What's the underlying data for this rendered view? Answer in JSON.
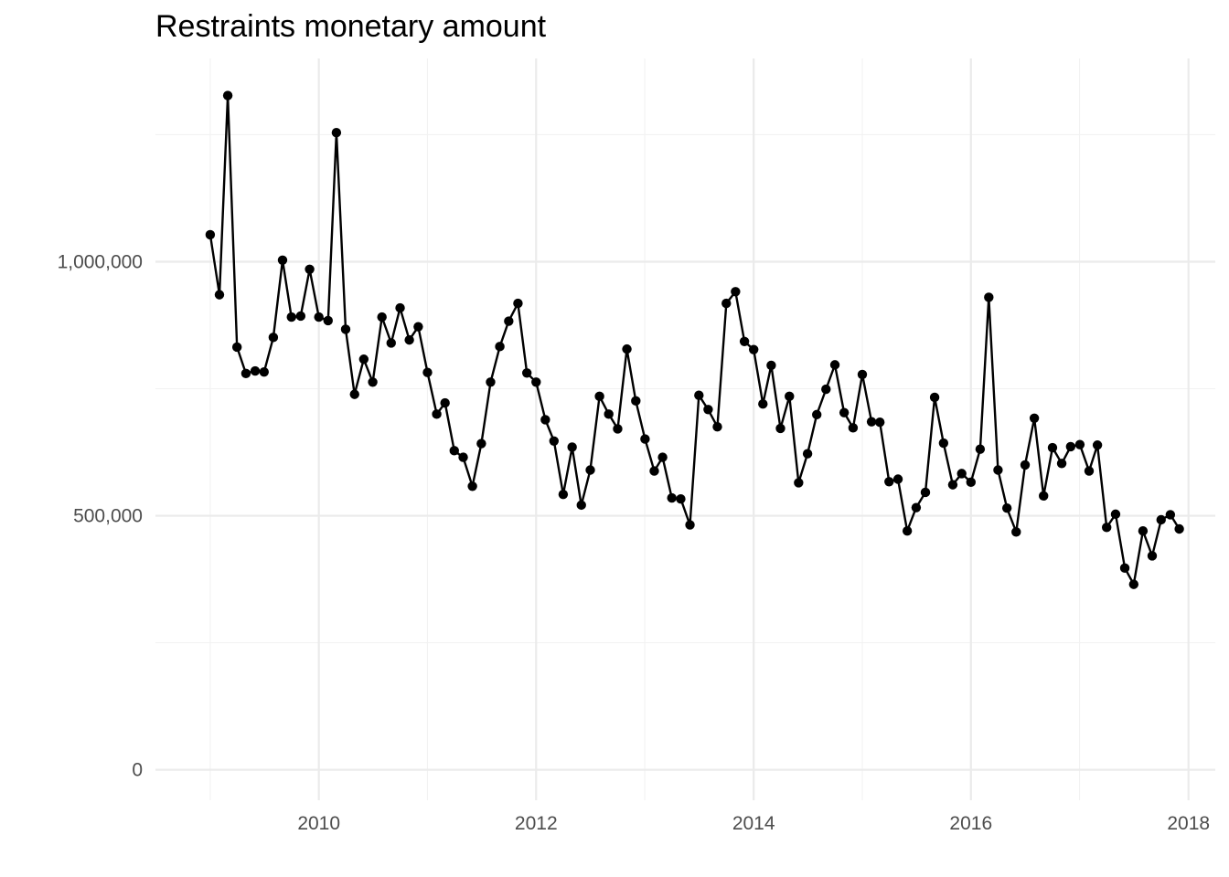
{
  "chart_data": {
    "type": "line",
    "title": "Restraints monetary amount",
    "xlabel": "",
    "ylabel": "",
    "x_type": "date",
    "x_ticks": [
      "2010",
      "2012",
      "2014",
      "2016",
      "2018"
    ],
    "x_tick_values": [
      "2010-01-01",
      "2012-01-01",
      "2014-01-01",
      "2016-01-01",
      "2018-01-01"
    ],
    "y_ticks": [
      "0",
      "500,000",
      "1,000,000"
    ],
    "y_tick_values": [
      0,
      500000,
      1000000
    ],
    "xlim": [
      "2008-07-01",
      "2018-04-01"
    ],
    "ylim": [
      -60000,
      1400000
    ],
    "grid": true,
    "legend": "none",
    "line_color": "#000000",
    "series": [
      {
        "points": [
          [
            "2009-01-01",
            1053000
          ],
          [
            "2009-02-01",
            935000
          ],
          [
            "2009-03-01",
            1327000
          ],
          [
            "2009-04-01",
            832000
          ],
          [
            "2009-05-01",
            780000
          ],
          [
            "2009-06-01",
            785000
          ],
          [
            "2009-07-01",
            783000
          ],
          [
            "2009-08-01",
            851000
          ],
          [
            "2009-09-01",
            1003000
          ],
          [
            "2009-10-01",
            891000
          ],
          [
            "2009-11-01",
            893000
          ],
          [
            "2009-12-01",
            985000
          ],
          [
            "2010-01-01",
            891000
          ],
          [
            "2010-02-01",
            884000
          ],
          [
            "2010-03-01",
            1254000
          ],
          [
            "2010-04-01",
            867000
          ],
          [
            "2010-05-01",
            739000
          ],
          [
            "2010-06-01",
            808000
          ],
          [
            "2010-07-01",
            763000
          ],
          [
            "2010-08-01",
            891000
          ],
          [
            "2010-09-01",
            840000
          ],
          [
            "2010-10-01",
            909000
          ],
          [
            "2010-11-01",
            846000
          ],
          [
            "2010-12-01",
            872000
          ],
          [
            "2011-01-01",
            782000
          ],
          [
            "2011-02-01",
            700000
          ],
          [
            "2011-03-01",
            722000
          ],
          [
            "2011-04-01",
            628000
          ],
          [
            "2011-05-01",
            615000
          ],
          [
            "2011-06-01",
            558000
          ],
          [
            "2011-07-01",
            642000
          ],
          [
            "2011-08-01",
            763000
          ],
          [
            "2011-09-01",
            833000
          ],
          [
            "2011-10-01",
            883000
          ],
          [
            "2011-11-01",
            918000
          ],
          [
            "2011-12-01",
            781000
          ],
          [
            "2012-01-01",
            763000
          ],
          [
            "2012-02-01",
            689000
          ],
          [
            "2012-03-01",
            647000
          ],
          [
            "2012-04-01",
            542000
          ],
          [
            "2012-05-01",
            635000
          ],
          [
            "2012-06-01",
            521000
          ],
          [
            "2012-07-01",
            590000
          ],
          [
            "2012-08-01",
            735000
          ],
          [
            "2012-09-01",
            700000
          ],
          [
            "2012-10-01",
            671000
          ],
          [
            "2012-11-01",
            828000
          ],
          [
            "2012-12-01",
            726000
          ],
          [
            "2013-01-01",
            651000
          ],
          [
            "2013-02-01",
            588000
          ],
          [
            "2013-03-01",
            615000
          ],
          [
            "2013-04-01",
            535000
          ],
          [
            "2013-05-01",
            533000
          ],
          [
            "2013-06-01",
            482000
          ],
          [
            "2013-07-01",
            737000
          ],
          [
            "2013-08-01",
            709000
          ],
          [
            "2013-09-01",
            675000
          ],
          [
            "2013-10-01",
            918000
          ],
          [
            "2013-11-01",
            941000
          ],
          [
            "2013-12-01",
            843000
          ],
          [
            "2014-01-01",
            827000
          ],
          [
            "2014-02-01",
            720000
          ],
          [
            "2014-03-01",
            796000
          ],
          [
            "2014-04-01",
            672000
          ],
          [
            "2014-05-01",
            735000
          ],
          [
            "2014-06-01",
            565000
          ],
          [
            "2014-07-01",
            622000
          ],
          [
            "2014-08-01",
            699000
          ],
          [
            "2014-09-01",
            749000
          ],
          [
            "2014-10-01",
            797000
          ],
          [
            "2014-11-01",
            703000
          ],
          [
            "2014-12-01",
            673000
          ],
          [
            "2015-01-01",
            778000
          ],
          [
            "2015-02-01",
            685000
          ],
          [
            "2015-03-01",
            684000
          ],
          [
            "2015-04-01",
            567000
          ],
          [
            "2015-05-01",
            572000
          ],
          [
            "2015-06-01",
            470000
          ],
          [
            "2015-07-01",
            516000
          ],
          [
            "2015-08-01",
            546000
          ],
          [
            "2015-09-01",
            733000
          ],
          [
            "2015-10-01",
            643000
          ],
          [
            "2015-11-01",
            561000
          ],
          [
            "2015-12-01",
            583000
          ],
          [
            "2016-01-01",
            566000
          ],
          [
            "2016-02-01",
            631000
          ],
          [
            "2016-03-01",
            930000
          ],
          [
            "2016-04-01",
            590000
          ],
          [
            "2016-05-01",
            515000
          ],
          [
            "2016-06-01",
            468000
          ],
          [
            "2016-07-01",
            600000
          ],
          [
            "2016-08-01",
            692000
          ],
          [
            "2016-09-01",
            539000
          ],
          [
            "2016-10-01",
            634000
          ],
          [
            "2016-11-01",
            603000
          ],
          [
            "2016-12-01",
            636000
          ],
          [
            "2017-01-01",
            640000
          ],
          [
            "2017-02-01",
            588000
          ],
          [
            "2017-03-01",
            639000
          ],
          [
            "2017-04-01",
            477000
          ],
          [
            "2017-05-01",
            503000
          ],
          [
            "2017-06-01",
            397000
          ],
          [
            "2017-07-01",
            365000
          ],
          [
            "2017-08-01",
            470000
          ],
          [
            "2017-09-01",
            421000
          ],
          [
            "2017-10-01",
            492000
          ],
          [
            "2017-11-01",
            502000
          ],
          [
            "2017-12-01",
            474000
          ]
        ]
      }
    ]
  }
}
